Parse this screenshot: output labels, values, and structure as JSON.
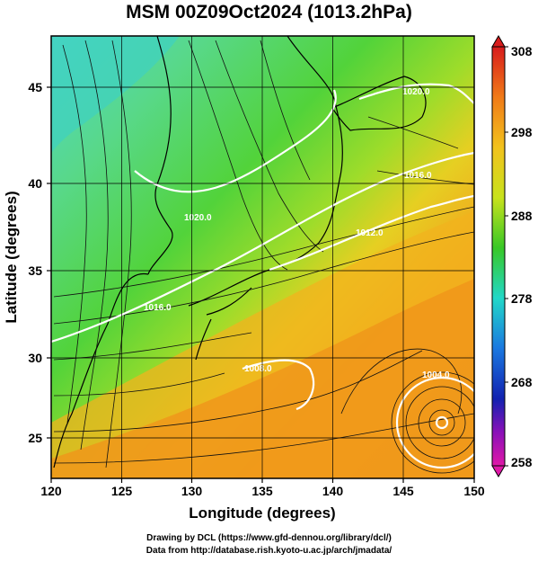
{
  "title": "MSM 00Z09Oct2024 (1013.2hPa)",
  "x_axis": {
    "label": "Longitude (degrees)",
    "ticks": [
      "120",
      "125",
      "130",
      "135",
      "140",
      "145",
      "150"
    ]
  },
  "y_axis": {
    "label": "Latitude  (degrees)",
    "ticks": [
      "25",
      "30",
      "35",
      "40",
      "45"
    ]
  },
  "colorbar": {
    "labels": [
      "308",
      "298",
      "288",
      "278",
      "268",
      "258"
    ],
    "colors": [
      "#d81c1c",
      "#f07a18",
      "#f2c21d",
      "#c8e21c",
      "#38c826",
      "#22d8c8",
      "#1a78e0",
      "#1222b0",
      "#8a10b8",
      "#e018a8"
    ]
  },
  "isobars": [
    "1020.0",
    "1016.0",
    "1012.0",
    "1020.0",
    "1016.0",
    "1008.0",
    "1004.0"
  ],
  "credit": {
    "line1": "Drawing by DCL (https://www.gfd-dennou.org/library/dcl/)",
    "line2": "Data from http://database.rish.kyoto-u.ac.jp/arch/jmadata/"
  }
}
